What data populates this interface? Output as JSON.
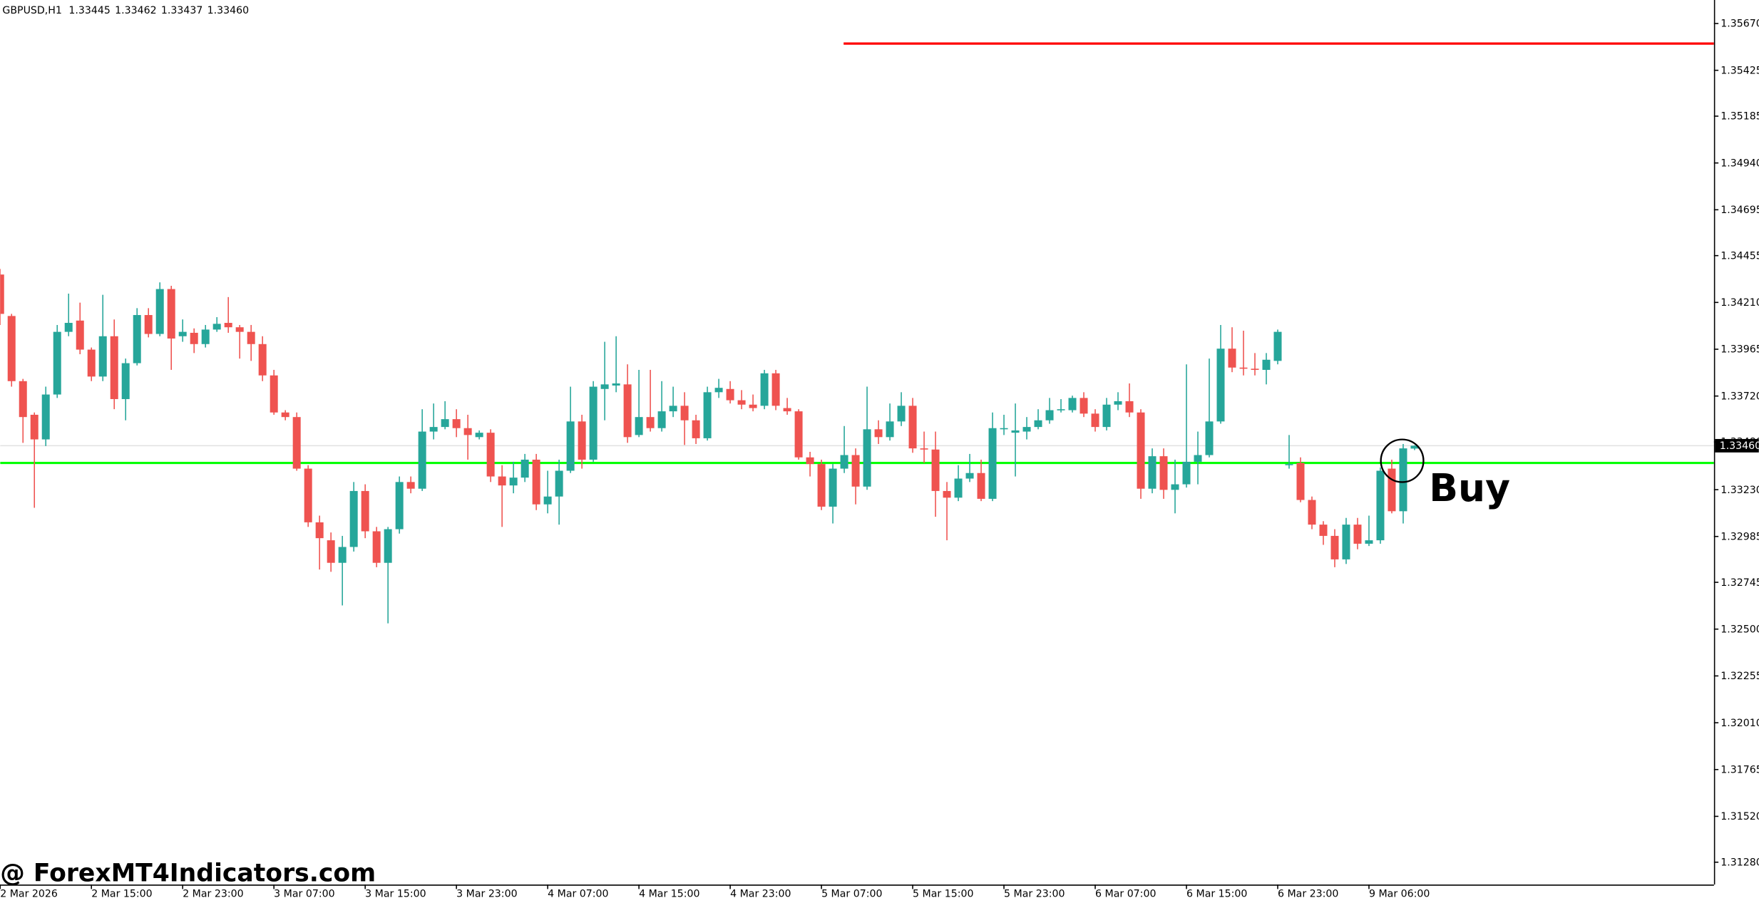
{
  "header": {
    "symbol": "GBPUSD,H1",
    "ohlc": [
      "1.33445",
      "1.33462",
      "1.33437",
      "1.33460"
    ]
  },
  "chart_data": {
    "type": "candlestick",
    "categories": [
      "2 Mar 2026",
      null,
      null,
      null,
      null,
      null,
      null,
      null,
      "2 Mar 15:00",
      null,
      null,
      null,
      null,
      null,
      null,
      null,
      "2 Mar 23:00",
      null,
      null,
      null,
      null,
      null,
      null,
      null,
      "3 Mar 07:00",
      null,
      null,
      null,
      null,
      null,
      null,
      null,
      "3 Mar 15:00",
      null,
      null,
      null,
      null,
      null,
      null,
      null,
      "3 Mar 23:00",
      null,
      null,
      null,
      null,
      null,
      null,
      null,
      "4 Mar 07:00",
      null,
      null,
      null,
      null,
      null,
      null,
      null,
      "4 Mar 15:00",
      null,
      null,
      null,
      null,
      null,
      null,
      null,
      "4 Mar 23:00",
      null,
      null,
      null,
      null,
      null,
      null,
      null,
      "5 Mar 07:00",
      null,
      null,
      null,
      null,
      null,
      null,
      null,
      "5 Mar 15:00",
      null,
      null,
      null,
      null,
      null,
      null,
      null,
      "5 Mar 23:00",
      null,
      null,
      null,
      null,
      null,
      null,
      null,
      "6 Mar 07:00",
      null,
      null,
      null,
      null,
      null,
      null,
      null,
      "6 Mar 15:00",
      null,
      null,
      null,
      null,
      null,
      null,
      null,
      "6 Mar 23:00",
      null,
      null,
      null,
      null,
      null,
      null,
      null,
      "9 Mar 06:00",
      null,
      null,
      null,
      null
    ],
    "ohlc": [
      [
        1.34356,
        1.34385,
        1.34092,
        1.3415
      ],
      [
        1.34139,
        1.3415,
        1.33769,
        1.33798
      ],
      [
        1.33798,
        1.3381,
        1.33475,
        1.3361
      ],
      [
        1.33622,
        1.33634,
        1.33135,
        1.33493
      ],
      [
        1.33493,
        1.33769,
        1.33458,
        1.33728
      ],
      [
        1.33728,
        1.34092,
        1.3371,
        1.34056
      ],
      [
        1.34056,
        1.34256,
        1.34033,
        1.34103
      ],
      [
        1.34115,
        1.34209,
        1.33939,
        1.33963
      ],
      [
        1.33963,
        1.33974,
        1.33798,
        1.33822
      ],
      [
        1.33822,
        1.3425,
        1.33798,
        1.34033
      ],
      [
        1.34033,
        1.34121,
        1.33651,
        1.33704
      ],
      [
        1.33704,
        1.33916,
        1.33593,
        1.33892
      ],
      [
        1.33892,
        1.3418,
        1.3388,
        1.34144
      ],
      [
        1.34144,
        1.3418,
        1.34027,
        1.34045
      ],
      [
        1.34045,
        1.34315,
        1.34033,
        1.3428
      ],
      [
        1.3428,
        1.34297,
        1.33857,
        1.34021
      ],
      [
        1.34033,
        1.34121,
        1.34004,
        1.34056
      ],
      [
        1.34051,
        1.34074,
        1.33945,
        1.33992
      ],
      [
        1.33992,
        1.34092,
        1.33974,
        1.34068
      ],
      [
        1.34068,
        1.34133,
        1.34056,
        1.34098
      ],
      [
        1.34103,
        1.34238,
        1.34051,
        1.3408
      ],
      [
        1.3408,
        1.34092,
        1.33916,
        1.34056
      ],
      [
        1.34056,
        1.34092,
        1.33904,
        1.33992
      ],
      [
        1.33992,
        1.34033,
        1.33798,
        1.33828
      ],
      [
        1.33828,
        1.33857,
        1.33622,
        1.33634
      ],
      [
        1.33634,
        1.33646,
        1.33593,
        1.3361
      ],
      [
        1.3361,
        1.33634,
        1.33329,
        1.3334
      ],
      [
        1.3334,
        1.33358,
        1.33035,
        1.33059
      ],
      [
        1.33059,
        1.33094,
        1.32812,
        1.32976
      ],
      [
        1.32965,
        1.33006,
        1.328,
        1.32847
      ],
      [
        1.32847,
        1.32988,
        1.32624,
        1.3293
      ],
      [
        1.3293,
        1.3327,
        1.32906,
        1.33223
      ],
      [
        1.33223,
        1.33258,
        1.32976,
        1.33012
      ],
      [
        1.33012,
        1.33035,
        1.32824,
        1.32847
      ],
      [
        1.32847,
        1.33035,
        1.3253,
        1.33023
      ],
      [
        1.33023,
        1.33299,
        1.33,
        1.3327
      ],
      [
        1.3327,
        1.33299,
        1.33211,
        1.33235
      ],
      [
        1.33235,
        1.33651,
        1.33223,
        1.33534
      ],
      [
        1.33534,
        1.33681,
        1.33493,
        1.33558
      ],
      [
        1.33558,
        1.33693,
        1.33546,
        1.33599
      ],
      [
        1.33599,
        1.33651,
        1.33505,
        1.33552
      ],
      [
        1.33552,
        1.33622,
        1.33387,
        1.33516
      ],
      [
        1.33505,
        1.3354,
        1.33493,
        1.33528
      ],
      [
        1.33528,
        1.33546,
        1.3327,
        1.33299
      ],
      [
        1.33299,
        1.33358,
        1.33035,
        1.33252
      ],
      [
        1.33252,
        1.33376,
        1.33211,
        1.33293
      ],
      [
        1.33293,
        1.33417,
        1.3327,
        1.33387
      ],
      [
        1.33387,
        1.33417,
        1.33123,
        1.33153
      ],
      [
        1.33153,
        1.33329,
        1.33106,
        1.33194
      ],
      [
        1.33194,
        1.33387,
        1.33047,
        1.33329
      ],
      [
        1.33329,
        1.33769,
        1.33317,
        1.33587
      ],
      [
        1.33587,
        1.33622,
        1.3334,
        1.33387
      ],
      [
        1.33387,
        1.33798,
        1.33376,
        1.33769
      ],
      [
        1.33757,
        1.34004,
        1.33593,
        1.33781
      ],
      [
        1.33775,
        1.34033,
        1.3374,
        1.33786
      ],
      [
        1.33781,
        1.33886,
        1.33475,
        1.33505
      ],
      [
        1.33516,
        1.33857,
        1.33505,
        1.3361
      ],
      [
        1.3361,
        1.33857,
        1.33534,
        1.33552
      ],
      [
        1.33552,
        1.33798,
        1.33534,
        1.3364
      ],
      [
        1.3364,
        1.33769,
        1.3361,
        1.33669
      ],
      [
        1.33669,
        1.3374,
        1.33464,
        1.33593
      ],
      [
        1.33593,
        1.33622,
        1.33469,
        1.33499
      ],
      [
        1.33499,
        1.33769,
        1.33487,
        1.3374
      ],
      [
        1.3374,
        1.3381,
        1.3371,
        1.33763
      ],
      [
        1.33757,
        1.33798,
        1.33681,
        1.33698
      ],
      [
        1.33698,
        1.33751,
        1.33651,
        1.33675
      ],
      [
        1.33675,
        1.33728,
        1.3364,
        1.33657
      ],
      [
        1.33669,
        1.33857,
        1.33651,
        1.33839
      ],
      [
        1.33839,
        1.33857,
        1.33646,
        1.33669
      ],
      [
        1.33657,
        1.3371,
        1.33622,
        1.3364
      ],
      [
        1.3364,
        1.33651,
        1.33387,
        1.33399
      ],
      [
        1.33399,
        1.33428,
        1.33299,
        1.33364
      ],
      [
        1.33364,
        1.33387,
        1.33123,
        1.33141
      ],
      [
        1.33141,
        1.33364,
        1.33053,
        1.3334
      ],
      [
        1.3334,
        1.33563,
        1.33317,
        1.33411
      ],
      [
        1.33411,
        1.33446,
        1.33153,
        1.33246
      ],
      [
        1.33246,
        1.33769,
        1.33229,
        1.33546
      ],
      [
        1.33546,
        1.33593,
        1.33469,
        1.33505
      ],
      [
        1.33505,
        1.33681,
        1.33487,
        1.33587
      ],
      [
        1.33587,
        1.3374,
        1.33563,
        1.33669
      ],
      [
        1.33669,
        1.3371,
        1.33423,
        1.33446
      ],
      [
        1.33446,
        1.33534,
        1.3337,
        1.3344
      ],
      [
        1.3344,
        1.33534,
        1.33088,
        1.33223
      ],
      [
        1.33223,
        1.3327,
        1.32965,
        1.33188
      ],
      [
        1.33188,
        1.33358,
        1.3317,
        1.33288
      ],
      [
        1.33288,
        1.33417,
        1.3327,
        1.33317
      ],
      [
        1.33317,
        1.33387,
        1.3317,
        1.33182
      ],
      [
        1.33182,
        1.33634,
        1.3317,
        1.33552
      ],
      [
        1.33546,
        1.33622,
        1.33516,
        1.33552
      ],
      [
        1.33528,
        1.33681,
        1.33299,
        1.3354
      ],
      [
        1.33534,
        1.3361,
        1.33493,
        1.33558
      ],
      [
        1.33558,
        1.33651,
        1.33546,
        1.33593
      ],
      [
        1.33593,
        1.3371,
        1.33575,
        1.33646
      ],
      [
        1.33646,
        1.33704,
        1.33634,
        1.33651
      ],
      [
        1.33646,
        1.33722,
        1.33634,
        1.3371
      ],
      [
        1.3371,
        1.3374,
        1.3361,
        1.33628
      ],
      [
        1.33628,
        1.33651,
        1.33534,
        1.33558
      ],
      [
        1.33558,
        1.3371,
        1.3354,
        1.33675
      ],
      [
        1.33675,
        1.3374,
        1.33646,
        1.33693
      ],
      [
        1.33693,
        1.33786,
        1.3361,
        1.33634
      ],
      [
        1.33634,
        1.33651,
        1.33182,
        1.33235
      ],
      [
        1.33235,
        1.33446,
        1.33211,
        1.33405
      ],
      [
        1.33405,
        1.33446,
        1.33182,
        1.33229
      ],
      [
        1.33229,
        1.33387,
        1.33106,
        1.33258
      ],
      [
        1.33258,
        1.33886,
        1.33241,
        1.33376
      ],
      [
        1.33376,
        1.33534,
        1.33258,
        1.33411
      ],
      [
        1.33411,
        1.33916,
        1.33399,
        1.33587
      ],
      [
        1.33587,
        1.34092,
        1.33575,
        1.33968
      ],
      [
        1.33968,
        1.3408,
        1.33845,
        1.33869
      ],
      [
        1.33869,
        1.34062,
        1.33828,
        1.33863
      ],
      [
        1.33863,
        1.33945,
        1.33828,
        1.33857
      ],
      [
        1.33857,
        1.33945,
        1.33781,
        1.3391
      ],
      [
        1.33904,
        1.34068,
        1.33886,
        1.34056
      ],
      [
        1.33358,
        1.33516,
        1.3334,
        1.33364
      ],
      [
        1.3337,
        1.33399,
        1.33164,
        1.33176
      ],
      [
        1.33176,
        1.33194,
        1.33023,
        1.33047
      ],
      [
        1.33047,
        1.33065,
        1.32941,
        1.32988
      ],
      [
        1.32988,
        1.33023,
        1.32824,
        1.32865
      ],
      [
        1.32865,
        1.33082,
        1.32841,
        1.33047
      ],
      [
        1.33047,
        1.33082,
        1.32918,
        1.32947
      ],
      [
        1.32947,
        1.33094,
        1.32935,
        1.32965
      ],
      [
        1.32965,
        1.33346,
        1.32947,
        1.33329
      ],
      [
        1.3334,
        1.33387,
        1.33106,
        1.33117
      ],
      [
        1.33117,
        1.33469,
        1.33053,
        1.33446
      ],
      [
        1.33445,
        1.33462,
        1.33437,
        1.3346
      ]
    ],
    "up_color": "#26a69a",
    "down_color": "#ef5350",
    "ylim": [
      1.31163,
      1.35793
    ],
    "yticks": [
      {
        "value": 1.3567,
        "label": "1.35670"
      },
      {
        "value": 1.35425,
        "label": "1.35425"
      },
      {
        "value": 1.35185,
        "label": "1.35185"
      },
      {
        "value": 1.3494,
        "label": "1.34940"
      },
      {
        "value": 1.34695,
        "label": "1.34695"
      },
      {
        "value": 1.34455,
        "label": "1.34455"
      },
      {
        "value": 1.3421,
        "label": "1.34210"
      },
      {
        "value": 1.33965,
        "label": "1.33965"
      },
      {
        "value": 1.3372,
        "label": "1.33720"
      },
      {
        "value": 1.3348,
        "label": "1.33480"
      },
      {
        "value": 1.3323,
        "label": "1.33230"
      },
      {
        "value": 1.32985,
        "label": "1.32985"
      },
      {
        "value": 1.32745,
        "label": "1.32745"
      },
      {
        "value": 1.325,
        "label": "1.32500"
      },
      {
        "value": 1.32255,
        "label": "1.32255"
      },
      {
        "value": 1.3201,
        "label": "1.32010"
      },
      {
        "value": 1.31765,
        "label": "1.31765"
      },
      {
        "value": 1.3152,
        "label": "1.31520"
      },
      {
        "value": 1.3128,
        "label": "1.31280"
      }
    ],
    "current_price": {
      "value": 1.3346,
      "label": "1.33460"
    },
    "levels": [
      {
        "value": 1.35565,
        "color": "#ff0000"
      },
      {
        "value": 1.3337,
        "color": "#00ff00"
      }
    ],
    "annotation": "Buy",
    "watermark": "@ ForexMT4Indicators.com"
  }
}
